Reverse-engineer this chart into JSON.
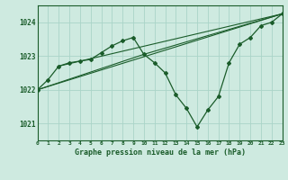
{
  "background_color": "#ceeae0",
  "grid_color": "#aad4c8",
  "line_color": "#1a5c2a",
  "title": "Graphe pression niveau de la mer (hPa)",
  "xlim": [
    0,
    23
  ],
  "ylim": [
    1020.5,
    1024.5
  ],
  "yticks": [
    1021,
    1022,
    1023,
    1024
  ],
  "xticks": [
    0,
    1,
    2,
    3,
    4,
    5,
    6,
    7,
    8,
    9,
    10,
    11,
    12,
    13,
    14,
    15,
    16,
    17,
    18,
    19,
    20,
    21,
    22,
    23
  ],
  "series1_x": [
    0,
    1,
    2,
    3,
    4,
    5,
    6,
    7,
    8,
    9,
    10,
    11,
    12,
    13,
    14,
    15,
    16,
    17,
    18,
    19,
    20,
    21,
    22,
    23
  ],
  "series1_y": [
    1022.0,
    1022.3,
    1022.7,
    1022.8,
    1022.85,
    1022.9,
    1023.1,
    1023.3,
    1023.45,
    1023.55,
    1023.05,
    1022.8,
    1022.5,
    1021.85,
    1021.45,
    1020.9,
    1021.4,
    1021.8,
    1022.8,
    1023.35,
    1023.55,
    1023.9,
    1024.0,
    1024.25
  ],
  "line2_x": [
    0,
    23
  ],
  "line2_y": [
    1022.0,
    1024.25
  ],
  "line3_x": [
    2,
    23
  ],
  "line3_y": [
    1022.7,
    1024.25
  ],
  "line4_x": [
    0,
    10,
    23
  ],
  "line4_y": [
    1022.0,
    1023.05,
    1024.25
  ]
}
